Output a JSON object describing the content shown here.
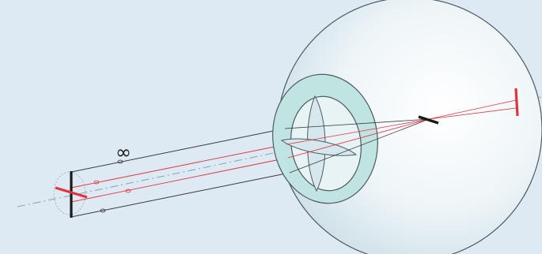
{
  "diagram": {
    "infinity_label": "∞"
  },
  "colors": {
    "background": "#dde9f3",
    "eyeball_fill": "#eef5f8",
    "eyeball_stroke": "#4f5a5f",
    "iris_fill": "#bfe4e1",
    "lens_fill": "#e8f3f6",
    "object_line": "#1a1a1a",
    "ray_red": "#e0333a",
    "ray_dark": "#3a3a3a",
    "axis_gray": "#8aa0b0"
  }
}
